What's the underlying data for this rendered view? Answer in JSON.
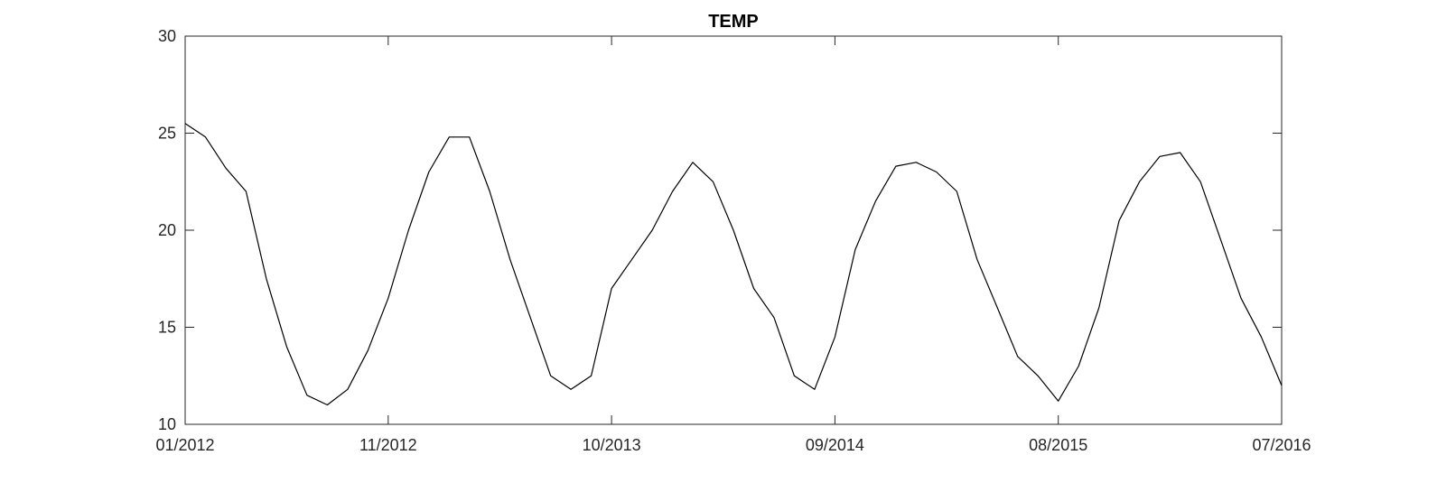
{
  "chart_data": {
    "type": "line",
    "title": "TEMP",
    "xlabel": "",
    "ylabel": "",
    "xlim": [
      "2012-01",
      "2016-07"
    ],
    "ylim": [
      10,
      30
    ],
    "x_ticks": [
      "01/2012",
      "11/2012",
      "10/2013",
      "09/2014",
      "08/2015",
      "07/2016"
    ],
    "y_ticks": [
      10,
      15,
      20,
      25,
      30
    ],
    "grid": false,
    "legend": "none",
    "colors": {
      "line": "#000000",
      "axes": "#262626",
      "background": "#ffffff"
    },
    "series": [
      {
        "x": [
          "2012-01",
          "2012-02",
          "2012-03",
          "2012-04",
          "2012-05",
          "2012-06",
          "2012-07",
          "2012-08",
          "2012-09",
          "2012-10",
          "2012-11",
          "2012-12",
          "2013-01",
          "2013-02",
          "2013-03",
          "2013-04",
          "2013-05",
          "2013-06",
          "2013-07",
          "2013-08",
          "2013-09",
          "2013-10",
          "2013-11",
          "2013-12",
          "2014-01",
          "2014-02",
          "2014-03",
          "2014-04",
          "2014-05",
          "2014-06",
          "2014-07",
          "2014-08",
          "2014-09",
          "2014-10",
          "2014-11",
          "2014-12",
          "2015-01",
          "2015-02",
          "2015-03",
          "2015-04",
          "2015-05",
          "2015-06",
          "2015-07",
          "2015-08",
          "2015-09",
          "2015-10",
          "2015-11",
          "2015-12",
          "2016-01",
          "2016-02",
          "2016-03",
          "2016-04",
          "2016-05",
          "2016-06",
          "2016-07"
        ],
        "values": [
          25.5,
          24.8,
          23.2,
          22.0,
          17.5,
          14.0,
          11.5,
          11.0,
          11.8,
          13.8,
          16.5,
          20.0,
          23.0,
          24.8,
          24.8,
          22.0,
          18.5,
          15.5,
          12.5,
          11.8,
          12.5,
          17.0,
          18.5,
          20.0,
          22.0,
          23.5,
          22.5,
          20.0,
          17.0,
          15.5,
          12.5,
          11.8,
          14.5,
          19.0,
          21.5,
          23.3,
          23.5,
          23.0,
          22.0,
          18.5,
          16.0,
          13.5,
          12.5,
          11.2,
          13.0,
          16.0,
          20.5,
          22.5,
          23.8,
          24.0,
          22.5,
          19.5,
          16.5,
          14.5,
          12.0
        ]
      }
    ]
  }
}
